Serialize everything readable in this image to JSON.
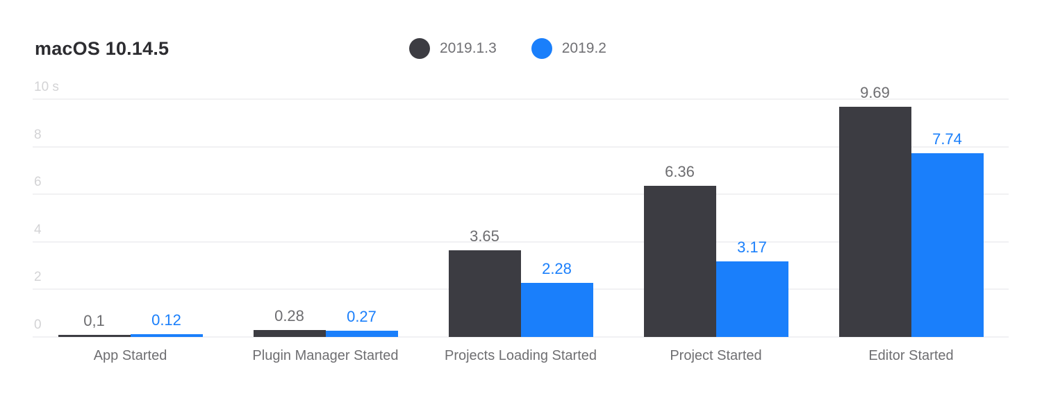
{
  "header": {
    "title": "macOS 10.14.5"
  },
  "chart_data": {
    "type": "bar",
    "title": "macOS 10.14.5",
    "ylabel": "",
    "xlabel": "",
    "unit_suffix": "s",
    "categories": [
      "App Started",
      "Plugin Manager Started",
      "Projects Loading Started",
      "Project Started",
      "Editor Started"
    ],
    "series": [
      {
        "name": "2019.1.3",
        "color": "#3C3C42",
        "label_color": "#6D6D70",
        "values": [
          0.1,
          0.28,
          3.65,
          6.36,
          9.69
        ],
        "value_labels": [
          "0,1",
          "0.28",
          "3.65",
          "6.36",
          "9.69"
        ]
      },
      {
        "name": "2019.2",
        "color": "#1A7FFB",
        "label_color": "#1A7FFB",
        "values": [
          0.12,
          0.27,
          2.28,
          3.17,
          7.74
        ],
        "value_labels": [
          "0.12",
          "0.27",
          "2.28",
          "3.17",
          "7.74"
        ]
      }
    ],
    "ylim": [
      0,
      10
    ],
    "yticks": [
      {
        "value": 0,
        "label": "0"
      },
      {
        "value": 2,
        "label": "2"
      },
      {
        "value": 4,
        "label": "4"
      },
      {
        "value": 6,
        "label": "6"
      },
      {
        "value": 8,
        "label": "8"
      },
      {
        "value": 10,
        "label": "10 s"
      }
    ],
    "grid": true,
    "legend_position": "top-center"
  },
  "colors": {
    "background": "#FFFFFF",
    "title_text": "#2C2C30",
    "legend_text": "#707074",
    "tick_text": "#D3D3D5",
    "gridline": "#F1F1F3",
    "category_text": "#6E6E71"
  }
}
